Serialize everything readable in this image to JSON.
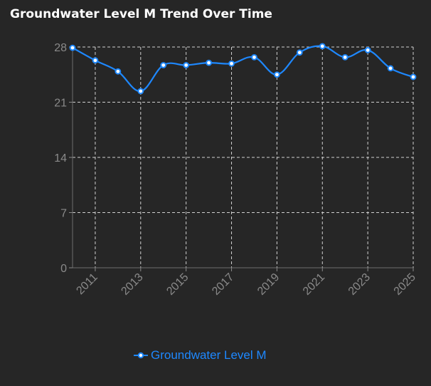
{
  "chart_data": {
    "type": "line",
    "title": "Groundwater Level M Trend Over Time",
    "xlabel": "",
    "ylabel": "",
    "x": [
      2010,
      2011,
      2012,
      2013,
      2014,
      2015,
      2016,
      2017,
      2018,
      2019,
      2020,
      2021,
      2022,
      2023,
      2024,
      2025
    ],
    "series": [
      {
        "name": "Groundwater Level M",
        "values": [
          27.9,
          26.3,
          24.9,
          22.4,
          25.7,
          25.7,
          26.0,
          25.9,
          26.7,
          24.5,
          27.3,
          28.1,
          26.7,
          27.6,
          25.3,
          24.2
        ]
      }
    ],
    "y_ticks": [
      "0",
      "7",
      "14",
      "21",
      "28"
    ],
    "x_ticks": [
      "2011",
      "2013",
      "2015",
      "2017",
      "2019",
      "2021",
      "2023",
      "2025"
    ],
    "ylim": [
      0,
      28
    ],
    "xlim": [
      2010,
      2025
    ],
    "grid": true,
    "legend_position": "bottom"
  },
  "colors": {
    "background": "#262626",
    "series": "#1e88ff",
    "grid": "#d0d0d0",
    "axis_text": "#8a8a8a",
    "title": "#ffffff",
    "marker_fill": "#ffffff"
  }
}
